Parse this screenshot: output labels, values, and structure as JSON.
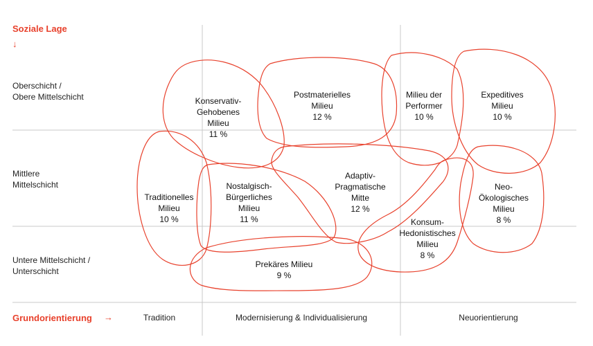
{
  "axes": {
    "y_title": "Soziale Lage",
    "y_arrow": "↓",
    "x_title": "Grundorientierung",
    "x_arrow": "→"
  },
  "rows": [
    {
      "line1": "Oberschicht /",
      "line2": "Obere Mittelschicht"
    },
    {
      "line1": "Mittlere",
      "line2": "Mittelschicht"
    },
    {
      "line1": "Untere Mittelschicht /",
      "line2": "Unterschicht"
    }
  ],
  "columns": [
    "Tradition",
    "Modernisierung & Individualisierung",
    "Neuorientierung"
  ],
  "milieus": [
    {
      "lines": [
        "Konservativ-",
        "Gehobenes",
        "Milieu"
      ],
      "share": "11 %"
    },
    {
      "lines": [
        "Postmaterielles",
        "Milieu"
      ],
      "share": "12 %"
    },
    {
      "lines": [
        "Milieu der",
        "Performer"
      ],
      "share": "10 %"
    },
    {
      "lines": [
        "Expeditives",
        "Milieu"
      ],
      "share": "10 %"
    },
    {
      "lines": [
        "Traditionelles",
        "Milieu"
      ],
      "share": "10 %"
    },
    {
      "lines": [
        "Nostalgisch-",
        "Bürgerliches",
        "Milieu"
      ],
      "share": "11 %"
    },
    {
      "lines": [
        "Adaptiv-",
        "Pragmatische",
        "Mitte"
      ],
      "share": "12 %"
    },
    {
      "lines": [
        "Neo-",
        "Ökologisches",
        "Milieu"
      ],
      "share": "8 %"
    },
    {
      "lines": [
        "Konsum-",
        "Hedonistisches",
        "Milieu"
      ],
      "share": "8 %"
    },
    {
      "lines": [
        "Prekäres Milieu"
      ],
      "share": "9 %"
    }
  ],
  "colors": {
    "accent": "#e8412c",
    "grid": "#c8c8c8"
  }
}
